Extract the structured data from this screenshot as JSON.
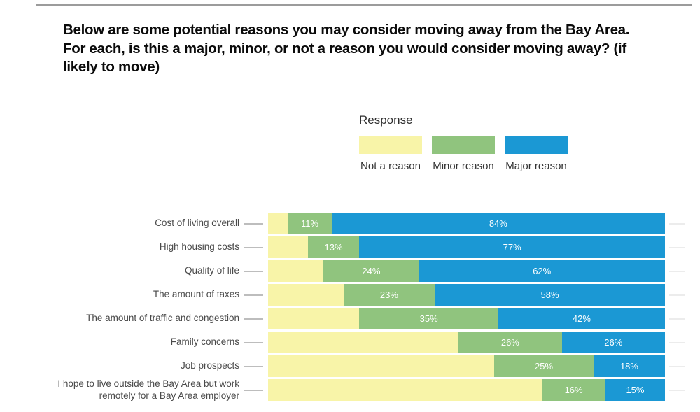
{
  "header": {
    "title": "Below are some potential reasons you may consider moving away from the Bay Area. For each, is this a major, minor, or not a reason you would consider moving away? (if likely to move)",
    "title_lines": [
      "Below are some potential reasons you may consider moving away from the Bay Area.",
      "For each, is this a major, minor, or not a reason you would consider moving away? (if",
      "likely to move)"
    ]
  },
  "legend": {
    "title": "Response",
    "items": [
      {
        "label": "Not a reason",
        "color": "#f8f4a8"
      },
      {
        "label": "Minor reason",
        "color": "#90c47e"
      },
      {
        "label": "Major reason",
        "color": "#1b98d4"
      }
    ]
  },
  "chart_data": {
    "type": "bar",
    "orientation": "horizontal",
    "stacking": "percent",
    "title": "Below are some potential reasons you may consider moving away from the Bay Area. For each, is this a major, minor, or not a reason you would consider moving away? (if likely to move)",
    "legend_title": "Response",
    "legend_position": "top-center",
    "xlim": [
      0,
      100
    ],
    "unit": "%",
    "grid": false,
    "axis_ticks_visible": false,
    "categories": [
      "Cost of living overall",
      "High housing costs",
      "Quality of life",
      "The amount of taxes",
      "The amount of traffic and congestion",
      "Family concerns",
      "Job prospects",
      "I hope to live outside the Bay Area but work remotely for a Bay Area employer"
    ],
    "series": [
      {
        "name": "Not a reason",
        "color": "#f8f4a8",
        "data_labels_shown": false,
        "values": [
          5,
          10,
          14,
          19,
          23,
          48,
          57,
          69
        ]
      },
      {
        "name": "Minor reason",
        "color": "#90c47e",
        "data_labels_shown": true,
        "values": [
          11,
          13,
          24,
          23,
          35,
          26,
          25,
          16
        ]
      },
      {
        "name": "Major reason",
        "color": "#1b98d4",
        "data_labels_shown": true,
        "values": [
          84,
          77,
          62,
          58,
          42,
          26,
          18,
          15
        ]
      }
    ]
  }
}
